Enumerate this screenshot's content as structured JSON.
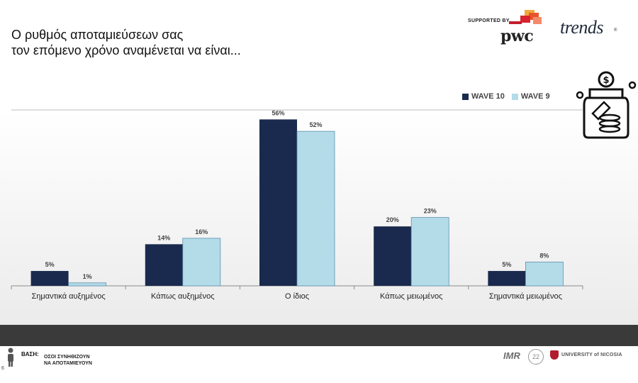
{
  "title_lines": [
    "Ο ρυθμός αποταμιεύσεων σας",
    "τον επόμενο χρόνο αναμένεται να είναι..."
  ],
  "branding": {
    "supported_by": "SUPPORTED BY",
    "pwc": "pwc",
    "trends": "trends",
    "trends_mark": "®"
  },
  "legend": [
    {
      "label": "WAVE 10",
      "color": "#1a2a4e"
    },
    {
      "label": "WAVE 9",
      "color": "#b4dce8"
    }
  ],
  "chart_data": {
    "type": "bar",
    "categories": [
      "Σημαντικά αυξημένος",
      "Κάπως αυξημένος",
      "Ο ίδιος",
      "Κάπως μειωμένος",
      "Σημαντικά μειωμένος"
    ],
    "series": [
      {
        "name": "WAVE 10",
        "values": [
          5,
          14,
          56,
          20,
          5
        ],
        "labels": [
          "5%",
          "14%",
          "56%",
          "20%",
          "5%"
        ],
        "color": "#1a2a4e"
      },
      {
        "name": "WAVE 9",
        "values": [
          1,
          16,
          52,
          23,
          8
        ],
        "labels": [
          "1%",
          "16%",
          "52%",
          "23%",
          "8%"
        ],
        "color": "#b4dce8"
      }
    ],
    "ylim": [
      0,
      65
    ],
    "legend_position": "top-right",
    "grid": false
  },
  "footer": {
    "base_label": "ΒΑΣΗ:",
    "base_lines": [
      "ΟΣΟΙ ΣΥΝΗΘΙΖΟΥΝ",
      "ΝΑ ΑΠΟΤΑΜΙΕΥΟΥΝ"
    ],
    "page_number": "6",
    "imr": "IMR",
    "badge": "22",
    "university": "UNIVERSITY of NICOSIA"
  }
}
